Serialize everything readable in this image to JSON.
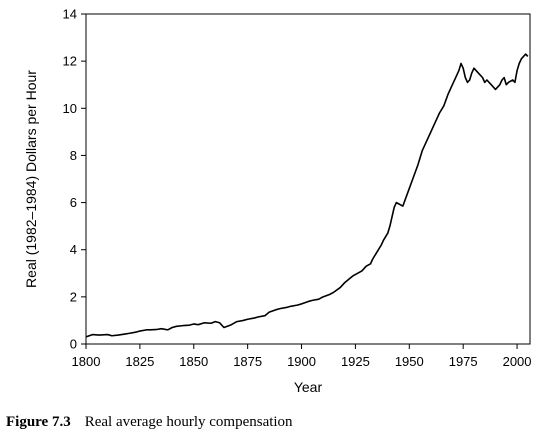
{
  "chart_data": {
    "type": "line",
    "title": "",
    "xlabel": "Year",
    "ylabel": "Real (1982–1984) Dollars per Hour",
    "xlim": [
      1800,
      2006
    ],
    "ylim": [
      0,
      14
    ],
    "xticks": [
      "1800",
      "1825",
      "1850",
      "1875",
      "1900",
      "1925",
      "1950",
      "1975",
      "2000"
    ],
    "yticks": [
      "0",
      "2",
      "4",
      "6",
      "8",
      "10",
      "12",
      "14"
    ],
    "grid": false,
    "legend": "none",
    "line_color": "#000000",
    "series": [
      {
        "x": [
          1800,
          1803,
          1806,
          1810,
          1812,
          1815,
          1818,
          1820,
          1823,
          1825,
          1828,
          1830,
          1833,
          1835,
          1838,
          1840,
          1842,
          1845,
          1848,
          1850,
          1852,
          1855,
          1858,
          1860,
          1862,
          1864,
          1867,
          1870,
          1873,
          1875,
          1878,
          1880,
          1883,
          1885,
          1888,
          1890,
          1893,
          1895,
          1898,
          1900,
          1903,
          1905,
          1908,
          1910,
          1913,
          1915,
          1918,
          1920,
          1922,
          1924,
          1926,
          1928,
          1930,
          1932,
          1933,
          1935,
          1937,
          1938,
          1940,
          1941,
          1942,
          1943,
          1944,
          1945,
          1946,
          1947,
          1948,
          1950,
          1952,
          1954,
          1955,
          1956,
          1958,
          1960,
          1962,
          1964,
          1966,
          1968,
          1970,
          1972,
          1973,
          1974,
          1975,
          1976,
          1977,
          1978,
          1979,
          1980,
          1982,
          1984,
          1985,
          1986,
          1988,
          1990,
          1991,
          1992,
          1993,
          1994,
          1995,
          1996,
          1998,
          1999,
          2000,
          2001,
          2002,
          2003,
          2004,
          2005
        ],
        "y": [
          0.3,
          0.4,
          0.38,
          0.4,
          0.35,
          0.38,
          0.42,
          0.45,
          0.5,
          0.55,
          0.6,
          0.6,
          0.62,
          0.65,
          0.6,
          0.7,
          0.75,
          0.78,
          0.8,
          0.85,
          0.82,
          0.9,
          0.88,
          0.95,
          0.9,
          0.7,
          0.8,
          0.95,
          1.0,
          1.05,
          1.1,
          1.15,
          1.2,
          1.35,
          1.45,
          1.5,
          1.55,
          1.6,
          1.65,
          1.7,
          1.8,
          1.85,
          1.9,
          2.0,
          2.1,
          2.2,
          2.4,
          2.6,
          2.75,
          2.9,
          3.0,
          3.1,
          3.3,
          3.4,
          3.6,
          3.9,
          4.2,
          4.4,
          4.7,
          5.0,
          5.4,
          5.8,
          6.0,
          5.95,
          5.9,
          5.85,
          6.1,
          6.6,
          7.1,
          7.6,
          7.9,
          8.2,
          8.6,
          9.0,
          9.4,
          9.8,
          10.1,
          10.6,
          11.0,
          11.4,
          11.6,
          11.9,
          11.7,
          11.3,
          11.1,
          11.2,
          11.5,
          11.7,
          11.5,
          11.3,
          11.1,
          11.2,
          11.0,
          10.8,
          10.9,
          11.0,
          11.2,
          11.3,
          11.0,
          11.1,
          11.2,
          11.1,
          11.6,
          11.9,
          12.1,
          12.2,
          12.3,
          12.2
        ]
      }
    ]
  },
  "caption": {
    "label": "Figure 7.3",
    "text": "Real average hourly compensation"
  }
}
